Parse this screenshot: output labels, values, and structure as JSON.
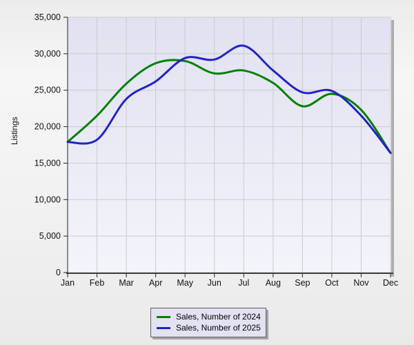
{
  "chart_data": {
    "type": "line",
    "title": "",
    "xlabel": "",
    "ylabel": "Listings",
    "categories": [
      "Jan",
      "Feb",
      "Mar",
      "Apr",
      "May",
      "Jun",
      "Jul",
      "Aug",
      "Sep",
      "Oct",
      "Nov",
      "Dec"
    ],
    "series": [
      {
        "name": "Sales, Number of 2024",
        "color": "#008000",
        "values": [
          17900,
          21500,
          25900,
          28700,
          29000,
          27300,
          27700,
          26000,
          22800,
          24500,
          22300,
          16400
        ]
      },
      {
        "name": "Sales, Number of 2025",
        "color": "#2222c8",
        "values": [
          17900,
          18200,
          23800,
          26200,
          29400,
          29200,
          31100,
          27700,
          24700,
          24900,
          21500,
          16400
        ]
      }
    ],
    "ylim": [
      0,
      35000
    ],
    "ytick_step": 5000,
    "grid": true,
    "curve": "spline",
    "legend_position": "bottom-center"
  },
  "colors": {
    "plot_bg_top": "#e1e1f1",
    "plot_bg_bottom": "#f4f4fb",
    "gridline": "#cbcbcb",
    "axis_line": "#3f3f3f",
    "tick_color": "#222222",
    "plot_border": "#c0c0c8",
    "shadow": "#aeaeae",
    "label_color": "#111111"
  }
}
